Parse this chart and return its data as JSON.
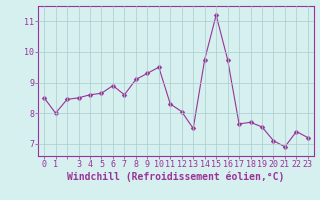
{
  "x": [
    0,
    1,
    2,
    3,
    4,
    5,
    6,
    7,
    8,
    9,
    10,
    11,
    12,
    13,
    14,
    15,
    16,
    17,
    18,
    19,
    20,
    21,
    22,
    23
  ],
  "y": [
    8.5,
    8.0,
    8.45,
    8.5,
    8.6,
    8.65,
    8.9,
    8.6,
    9.1,
    9.3,
    9.5,
    8.3,
    8.05,
    7.5,
    9.75,
    11.2,
    9.75,
    7.65,
    7.7,
    7.55,
    7.1,
    6.9,
    7.4,
    7.2
  ],
  "line_color": "#993399",
  "marker": "D",
  "marker_size": 2.5,
  "background_color": "#d6efef",
  "grid_color": "#aacccc",
  "xlabel": "Windchill (Refroidissement éolien,°C)",
  "ylim": [
    6.6,
    11.5
  ],
  "yticks": [
    7,
    8,
    9,
    10,
    11
  ],
  "xticks": [
    0,
    1,
    2,
    3,
    4,
    5,
    6,
    7,
    8,
    9,
    10,
    11,
    12,
    13,
    14,
    15,
    16,
    17,
    18,
    19,
    20,
    21,
    22,
    23
  ],
  "xtick_labels": [
    "0",
    "1",
    "",
    "3",
    "4",
    "5",
    "6",
    "7",
    "8",
    "9",
    "10",
    "11",
    "12",
    "13",
    "14",
    "15",
    "16",
    "17",
    "18",
    "19",
    "20",
    "21",
    "22",
    "23"
  ],
  "xlabel_fontsize": 7,
  "tick_fontsize": 6,
  "axis_color": "#993399",
  "spine_color": "#993399",
  "linewidth": 0.8
}
